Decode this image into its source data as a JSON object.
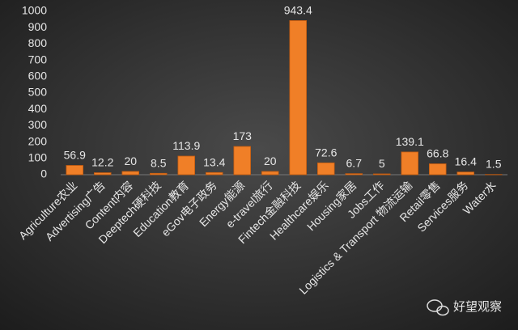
{
  "chart_data": {
    "type": "bar",
    "categories": [
      "Agriculture农业",
      "Advertising广告",
      "Content内容",
      "Deeptech硬科技",
      "Education教育",
      "eGov电子政务",
      "Energy能源",
      "e-travel旅行",
      "Fintech金融科技",
      "Healthcare娱乐",
      "Housing家居",
      "Jobs工作",
      "Logistics & Transport 物流运输",
      "Retail零售",
      "Services服务",
      "Water水"
    ],
    "values": [
      56.9,
      12.2,
      20,
      8.5,
      113.9,
      13.4,
      173,
      20,
      943.4,
      72.6,
      6.7,
      5,
      139.1,
      66.8,
      16.4,
      1.5
    ],
    "color": "#f07f27",
    "ylim": [
      0,
      1000
    ],
    "yticks": [
      0,
      100,
      200,
      300,
      400,
      500,
      600,
      700,
      800,
      900,
      1000
    ],
    "grid": false
  },
  "watermark": "好望观察"
}
